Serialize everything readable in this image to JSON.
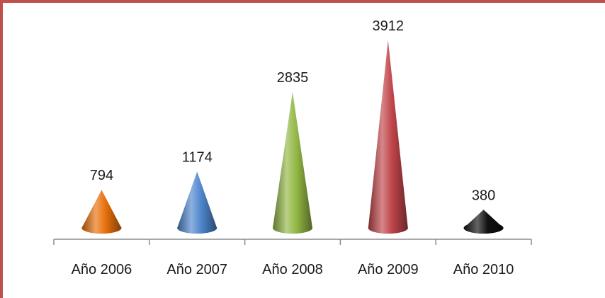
{
  "chart_data": {
    "type": "bar",
    "style": "cone",
    "categories": [
      "Año 2006",
      "Año 2007",
      "Año 2008",
      "Año 2009",
      "Año 2010"
    ],
    "values": [
      794,
      1174,
      2835,
      3912,
      380
    ],
    "data_labels": [
      "794",
      "1174",
      "2835",
      "3912",
      "380"
    ],
    "colors": [
      "#e8700c",
      "#4f86cc",
      "#92b744",
      "#c0454a",
      "#111111"
    ],
    "grid": false,
    "legend": "none",
    "title": "",
    "xlabel": "",
    "ylabel": ""
  },
  "frame": {
    "border_color": "#c0504d"
  }
}
